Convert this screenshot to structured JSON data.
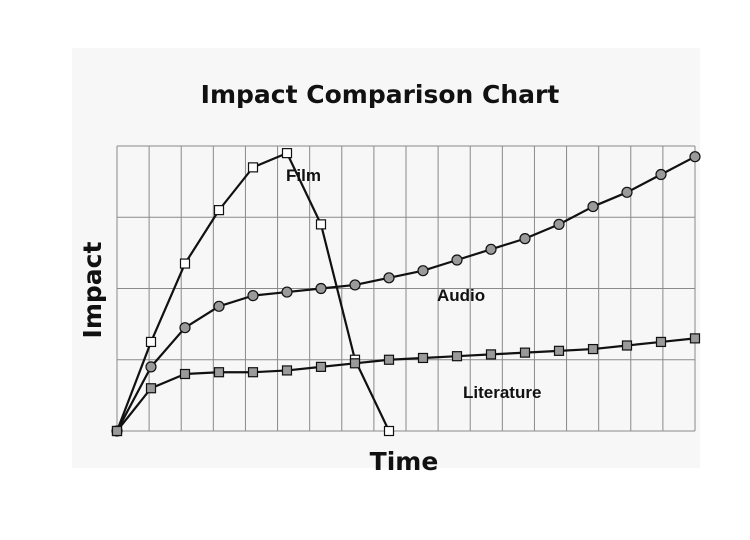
{
  "chart_data": {
    "type": "line",
    "title": "Impact Comparison Chart",
    "xlabel": "Time",
    "ylabel": "Impact",
    "xlim": [
      0,
      17
    ],
    "ylim": [
      0,
      8
    ],
    "grid": true,
    "legend": "inline labels beside each line",
    "series": [
      {
        "name": "Film",
        "marker": "square-open",
        "x": [
          0,
          1,
          2,
          3,
          4,
          5,
          6,
          7,
          8
        ],
        "y": [
          0,
          2.5,
          4.7,
          6.2,
          7.4,
          7.8,
          5.8,
          2.0,
          0
        ]
      },
      {
        "name": "Audio",
        "marker": "circle-gray",
        "x": [
          0,
          1,
          2,
          3,
          4,
          5,
          6,
          7,
          8,
          9,
          10,
          11,
          12,
          13,
          14,
          15,
          16,
          17
        ],
        "y": [
          0,
          1.8,
          2.9,
          3.5,
          3.8,
          3.9,
          4.0,
          4.1,
          4.3,
          4.5,
          4.8,
          5.1,
          5.4,
          5.8,
          6.3,
          6.7,
          7.2,
          7.7
        ]
      },
      {
        "name": "Literature",
        "marker": "square-gray",
        "x": [
          0,
          1,
          2,
          3,
          4,
          5,
          6,
          7,
          8,
          9,
          10,
          11,
          12,
          13,
          14,
          15,
          16,
          17
        ],
        "y": [
          0,
          1.2,
          1.6,
          1.65,
          1.65,
          1.7,
          1.8,
          1.9,
          2.0,
          2.05,
          2.1,
          2.15,
          2.2,
          2.25,
          2.3,
          2.4,
          2.5,
          2.6
        ]
      }
    ]
  },
  "colors": {
    "line": "#111111",
    "grid": "#8a8a8a",
    "marker_fill_gray": "#9a9a9a",
    "marker_fill_open": "#ffffff",
    "background_text": "#cfcfcf"
  }
}
